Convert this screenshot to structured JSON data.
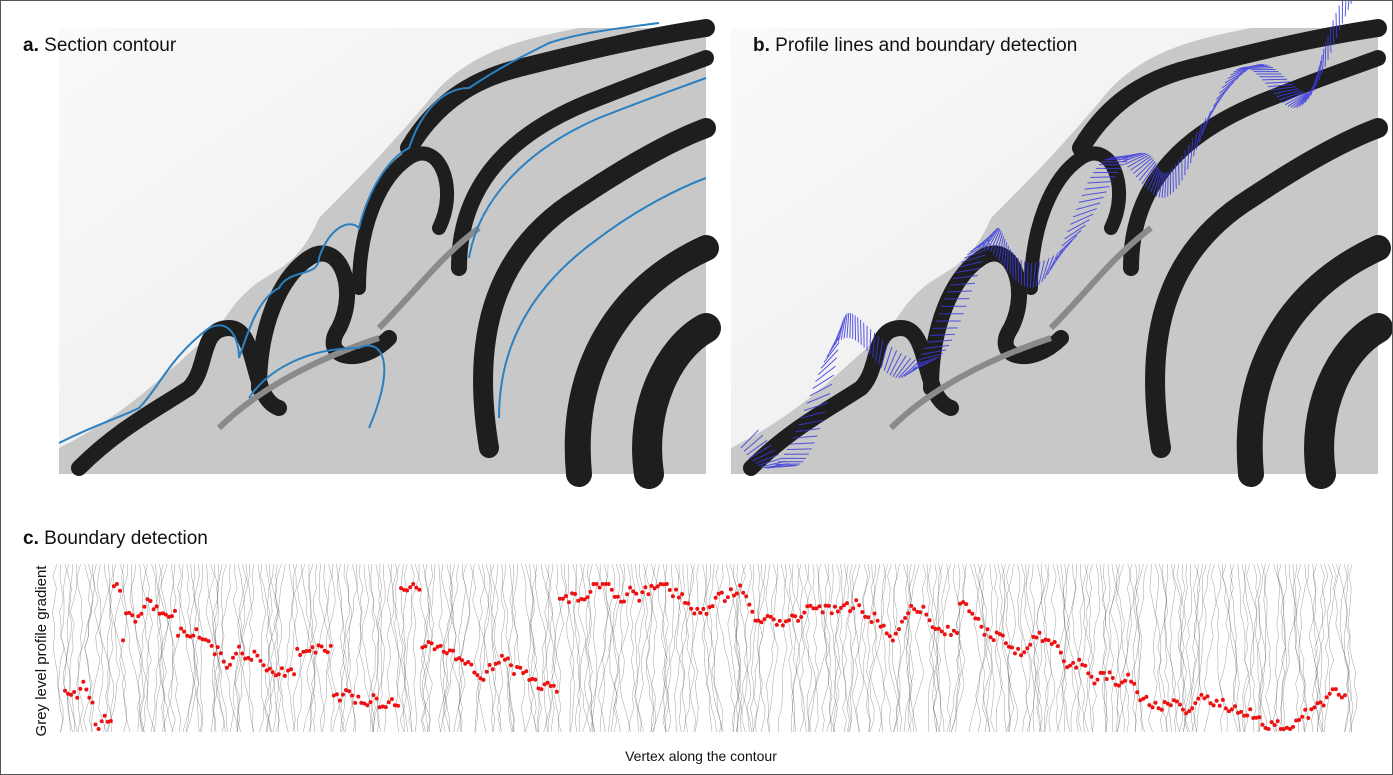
{
  "panels": [
    {
      "letter": "a.",
      "title": "Section contour"
    },
    {
      "letter": "b.",
      "title": "Profile lines and boundary detection"
    },
    {
      "letter": "c.",
      "title": "Boundary detection",
      "y_label": "Grey level profile gradient",
      "x_label": "Vertex along the contour"
    }
  ]
}
